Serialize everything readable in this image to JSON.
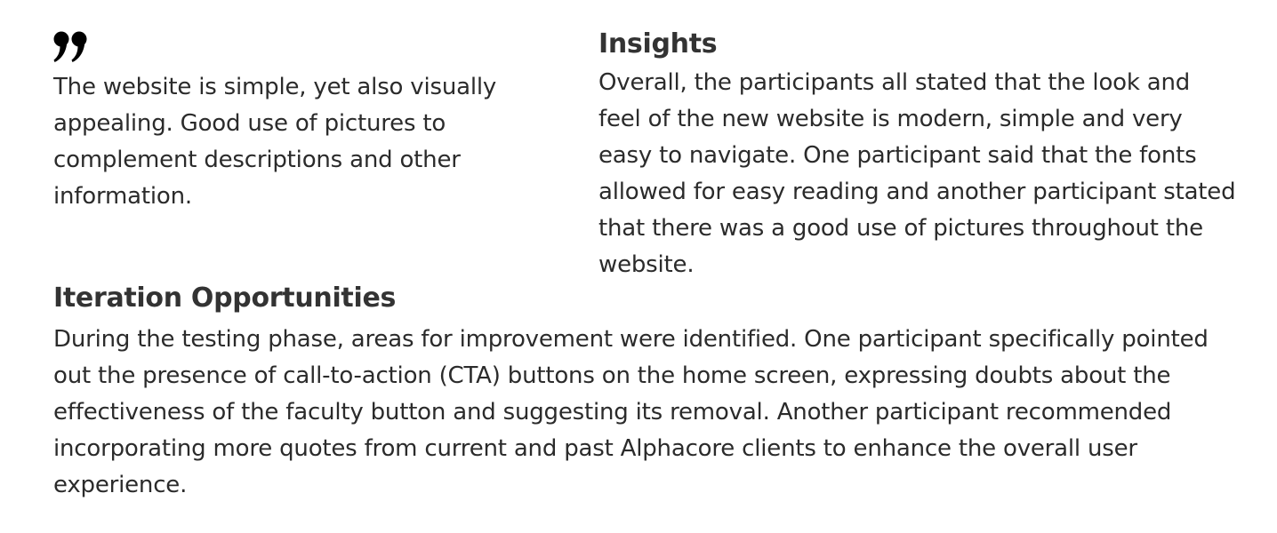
{
  "quote": {
    "icon": "closing-quote-icon",
    "text": "The website is simple, yet also visually appealing. Good use of pictures to complement descriptions and other information."
  },
  "insights": {
    "heading": "Insights",
    "body": "Overall, the participants all stated that the look and feel of the new website is modern, simple and very easy to navigate. One participant said that the fonts allowed for easy reading and another participant stated that there was a good use of pictures throughout the website."
  },
  "iteration": {
    "heading": "Iteration Opportunities",
    "body": "During the testing phase, areas for improvement were identified. One participant specifically pointed out the presence of call-to-action (CTA) buttons on the home screen, expressing doubts about the effectiveness of the faculty button and suggesting its removal. Another participant recommended incorporating more quotes from current and past Alphacore clients to enhance the overall user experience."
  },
  "colors": {
    "text": "#2b2b2b",
    "heading": "#333333",
    "background": "#ffffff"
  }
}
